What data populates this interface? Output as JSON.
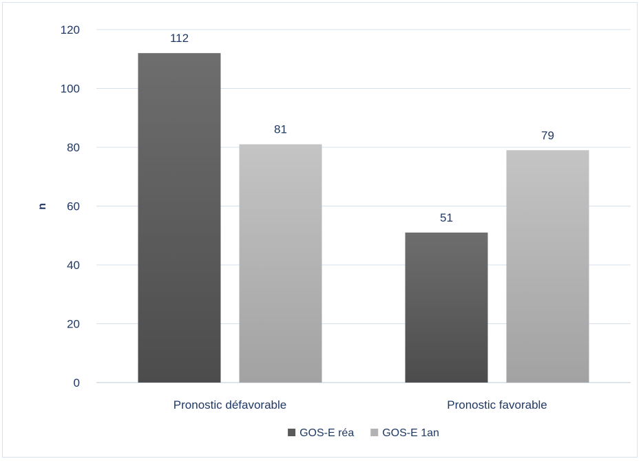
{
  "chart_data": {
    "type": "bar",
    "categories": [
      "Pronostic défavorable",
      "Pronostic favorable"
    ],
    "series": [
      {
        "name": "GOS-E réa",
        "values": [
          112,
          51
        ],
        "color": "#5a5a5a"
      },
      {
        "name": "GOS-E 1an",
        "values": [
          81,
          79
        ],
        "color": "#b3b3b3"
      }
    ],
    "ylabel": "n",
    "ylim": [
      0,
      120
    ],
    "yticks": [
      0,
      20,
      40,
      60,
      80,
      100,
      120
    ],
    "grid": true,
    "legend": "bottom"
  }
}
